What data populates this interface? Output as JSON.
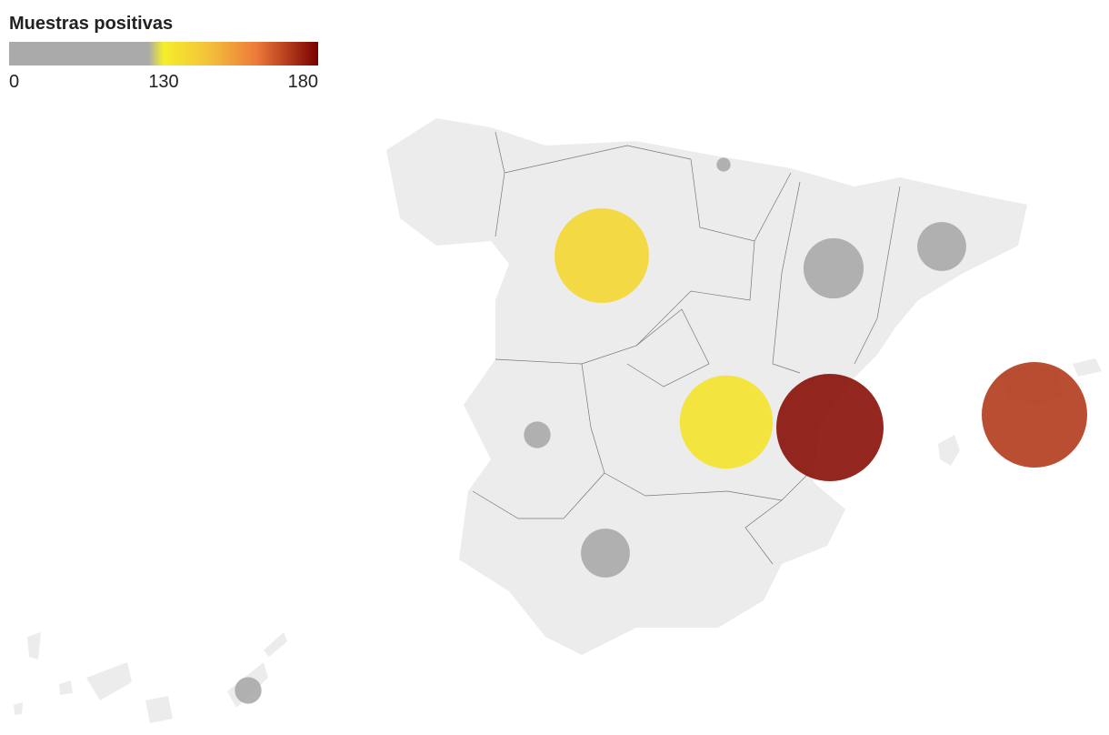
{
  "legend": {
    "title": "Muestras positivas",
    "ticks": [
      0,
      130,
      180
    ]
  },
  "chart_data": {
    "type": "bubble-map",
    "values": [
      138,
      56,
      37,
      3,
      11,
      134,
      178,
      172,
      37,
      11
    ]
  }
}
